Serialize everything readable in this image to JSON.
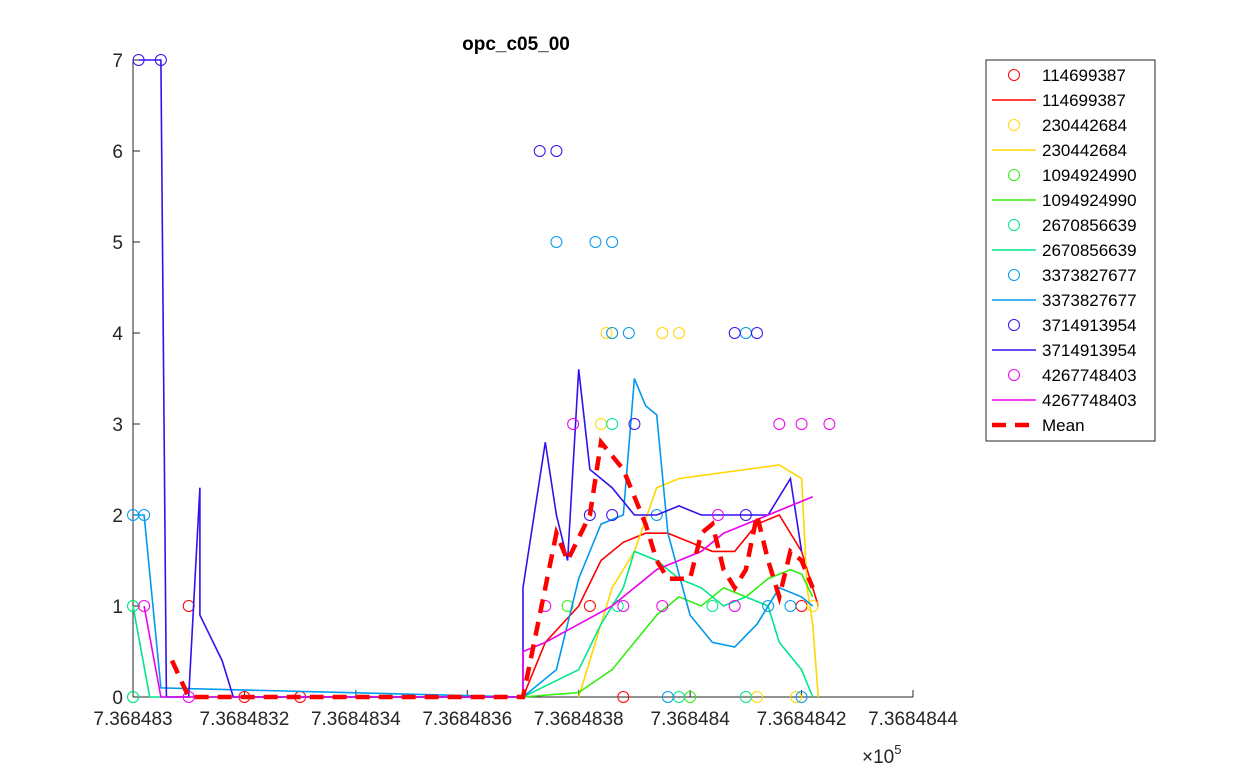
{
  "chart_data": {
    "type": "line",
    "title": "opc_c05_00",
    "xlabel": "",
    "ylabel": "",
    "x_exponent_label": "×10",
    "x_exponent_power": "5",
    "xlim": [
      7.368483,
      7.3684844
    ],
    "ylim": [
      0,
      7
    ],
    "x_ticks": [
      7.368483,
      7.3684832,
      7.3684834,
      7.3684836,
      7.3684838,
      7.368484,
      7.3684842,
      7.3684844
    ],
    "x_tick_labels": [
      "7.368483",
      "7.3684832",
      "7.3684834",
      "7.3684836",
      "7.3684838",
      "7.368484",
      "7.3684842",
      "7.3684844"
    ],
    "y_ticks": [
      0,
      1,
      2,
      3,
      4,
      5,
      6,
      7
    ],
    "y_tick_labels": [
      "0",
      "1",
      "2",
      "3",
      "4",
      "5",
      "6",
      "7"
    ],
    "grid": false,
    "legend_position": "outside-top-right",
    "series": [
      {
        "name": "114699387",
        "color": "#ff0000",
        "points": [
          [
            7.3684831,
            1
          ],
          [
            7.3684832,
            0
          ],
          [
            7.3684833,
            0
          ],
          [
            7.36848382,
            1
          ],
          [
            7.36848388,
            0
          ],
          [
            7.3684842,
            1
          ]
        ],
        "line": [
          [
            7.3684831,
            0
          ],
          [
            7.3684837,
            0
          ],
          [
            7.36848374,
            0.6
          ],
          [
            7.3684838,
            1.0
          ],
          [
            7.36848384,
            1.5
          ],
          [
            7.36848388,
            1.7
          ],
          [
            7.36848392,
            1.8
          ],
          [
            7.36848396,
            1.8
          ],
          [
            7.368484,
            1.7
          ],
          [
            7.36848404,
            1.6
          ],
          [
            7.36848408,
            1.6
          ],
          [
            7.36848412,
            1.9
          ],
          [
            7.36848416,
            2.0
          ],
          [
            7.3684842,
            1.6
          ],
          [
            7.36848423,
            1.0
          ]
        ]
      },
      {
        "name": "230442684",
        "color": "#ffd700",
        "points": [
          [
            7.36848384,
            3
          ],
          [
            7.36848385,
            4
          ],
          [
            7.36848386,
            4
          ],
          [
            7.36848395,
            4
          ],
          [
            7.36848398,
            4
          ],
          [
            7.36848412,
            0
          ],
          [
            7.36848419,
            0
          ],
          [
            7.36848422,
            1
          ]
        ],
        "line": [
          [
            7.3684838,
            0
          ],
          [
            7.36848383,
            0.6
          ],
          [
            7.36848386,
            1.2
          ],
          [
            7.3684839,
            1.6
          ],
          [
            7.36848394,
            2.3
          ],
          [
            7.36848398,
            2.4
          ],
          [
            7.36848404,
            2.45
          ],
          [
            7.3684841,
            2.5
          ],
          [
            7.36848416,
            2.55
          ],
          [
            7.3684842,
            2.4
          ],
          [
            7.36848421,
            1.2
          ],
          [
            7.36848422,
            0.8
          ],
          [
            7.36848423,
            0
          ]
        ]
      },
      {
        "name": "1094924990",
        "color": "#33ee11",
        "points": [
          [
            7.368483,
            1
          ],
          [
            7.368483,
            0
          ],
          [
            7.36848378,
            1
          ],
          [
            7.368484,
            0
          ]
        ],
        "line": [
          [
            7.3684837,
            0
          ],
          [
            7.3684838,
            0.05
          ],
          [
            7.36848386,
            0.3
          ],
          [
            7.3684839,
            0.6
          ],
          [
            7.36848394,
            0.9
          ],
          [
            7.36848398,
            1.1
          ],
          [
            7.36848402,
            1.0
          ],
          [
            7.36848406,
            1.2
          ],
          [
            7.3684841,
            1.1
          ],
          [
            7.36848414,
            1.3
          ],
          [
            7.36848418,
            1.4
          ],
          [
            7.3684842,
            1.35
          ],
          [
            7.36848422,
            1.1
          ]
        ]
      },
      {
        "name": "2670856639",
        "color": "#00e68a",
        "points": [
          [
            7.368483,
            1
          ],
          [
            7.368483,
            0
          ],
          [
            7.36848386,
            3
          ],
          [
            7.36848387,
            1
          ],
          [
            7.36848398,
            0
          ],
          [
            7.36848404,
            1
          ],
          [
            7.3684841,
            0
          ]
        ],
        "line": [
          [
            7.368483,
            1
          ],
          [
            7.36848303,
            0
          ],
          [
            7.3684837,
            0
          ],
          [
            7.3684838,
            0.3
          ],
          [
            7.36848384,
            0.8
          ],
          [
            7.36848388,
            1.2
          ],
          [
            7.3684839,
            1.6
          ],
          [
            7.36848394,
            1.5
          ],
          [
            7.36848398,
            1.3
          ],
          [
            7.36848402,
            1.2
          ],
          [
            7.36848406,
            1.0
          ],
          [
            7.3684841,
            1.1
          ],
          [
            7.36848414,
            1.0
          ],
          [
            7.36848416,
            0.6
          ],
          [
            7.3684842,
            0.3
          ],
          [
            7.36848422,
            0
          ]
        ]
      },
      {
        "name": "3373827677",
        "color": "#0099ee",
        "points": [
          [
            7.368483,
            2
          ],
          [
            7.36848302,
            2
          ],
          [
            7.36848376,
            5
          ],
          [
            7.36848383,
            5
          ],
          [
            7.36848386,
            5
          ],
          [
            7.36848386,
            4
          ],
          [
            7.36848389,
            4
          ],
          [
            7.36848394,
            2
          ],
          [
            7.36848396,
            0
          ],
          [
            7.3684841,
            4
          ],
          [
            7.36848414,
            1
          ],
          [
            7.36848418,
            1
          ],
          [
            7.3684842,
            0
          ]
        ],
        "line": [
          [
            7.368483,
            2
          ],
          [
            7.36848302,
            2
          ],
          [
            7.36848305,
            0.1
          ],
          [
            7.3684837,
            0
          ],
          [
            7.36848376,
            0.3
          ],
          [
            7.3684838,
            1.3
          ],
          [
            7.36848384,
            1.9
          ],
          [
            7.36848388,
            2.0
          ],
          [
            7.3684839,
            3.5
          ],
          [
            7.36848392,
            3.2
          ],
          [
            7.36848394,
            3.1
          ],
          [
            7.36848396,
            1.8
          ],
          [
            7.368484,
            0.9
          ],
          [
            7.36848404,
            0.6
          ],
          [
            7.36848408,
            0.55
          ],
          [
            7.36848412,
            0.8
          ],
          [
            7.36848416,
            1.2
          ],
          [
            7.3684842,
            1.1
          ],
          [
            7.36848422,
            1.0
          ]
        ]
      },
      {
        "name": "3714913954",
        "color": "#3311ee",
        "points": [
          [
            7.36848301,
            7
          ],
          [
            7.36848305,
            7
          ],
          [
            7.36848373,
            6
          ],
          [
            7.36848376,
            6
          ],
          [
            7.36848382,
            2
          ],
          [
            7.36848386,
            2
          ],
          [
            7.3684839,
            3
          ],
          [
            7.36848408,
            4
          ],
          [
            7.3684841,
            2
          ],
          [
            7.36848412,
            4
          ]
        ],
        "line": [
          [
            7.36848301,
            7
          ],
          [
            7.36848305,
            7
          ],
          [
            7.36848306,
            0
          ],
          [
            7.3684831,
            0
          ],
          [
            7.36848312,
            2.3
          ],
          [
            7.36848312,
            0.9
          ],
          [
            7.36848316,
            0.4
          ],
          [
            7.36848318,
            0
          ],
          [
            7.3684837,
            0
          ],
          [
            7.3684837,
            1.2
          ],
          [
            7.36848374,
            2.8
          ],
          [
            7.36848376,
            2.0
          ],
          [
            7.36848378,
            1.5
          ],
          [
            7.3684838,
            3.6
          ],
          [
            7.36848382,
            2.5
          ],
          [
            7.36848386,
            2.3
          ],
          [
            7.3684839,
            2.0
          ],
          [
            7.36848394,
            2.0
          ],
          [
            7.36848398,
            2.1
          ],
          [
            7.36848402,
            2.0
          ],
          [
            7.36848406,
            2.0
          ],
          [
            7.3684841,
            2.0
          ],
          [
            7.36848414,
            2.0
          ],
          [
            7.36848418,
            2.4
          ],
          [
            7.3684842,
            1.6
          ]
        ]
      },
      {
        "name": "4267748403",
        "color": "#ee00ee",
        "points": [
          [
            7.36848302,
            1
          ],
          [
            7.3684831,
            0
          ],
          [
            7.36848374,
            1
          ],
          [
            7.36848379,
            3
          ],
          [
            7.36848388,
            1
          ],
          [
            7.36848395,
            1
          ],
          [
            7.36848405,
            2
          ],
          [
            7.36848408,
            1
          ],
          [
            7.36848416,
            3
          ],
          [
            7.3684842,
            3
          ],
          [
            7.36848425,
            3
          ]
        ],
        "line": [
          [
            7.36848302,
            1
          ],
          [
            7.36848305,
            0
          ],
          [
            7.3684837,
            0
          ],
          [
            7.3684837,
            0.5
          ],
          [
            7.36848374,
            0.6
          ],
          [
            7.3684838,
            0.8
          ],
          [
            7.36848386,
            1.0
          ],
          [
            7.3684839,
            1.2
          ],
          [
            7.36848394,
            1.4
          ],
          [
            7.36848398,
            1.5
          ],
          [
            7.36848402,
            1.6
          ],
          [
            7.36848406,
            1.8
          ],
          [
            7.3684841,
            1.9
          ],
          [
            7.36848414,
            2.0
          ],
          [
            7.36848418,
            2.1
          ],
          [
            7.36848422,
            2.2
          ]
        ]
      }
    ],
    "mean": {
      "name": "Mean",
      "color": "#ff0000",
      "line": [
        [
          7.36848307,
          0.4
        ],
        [
          7.3684831,
          0
        ],
        [
          7.3684837,
          0
        ],
        [
          7.36848374,
          1.2
        ],
        [
          7.36848376,
          1.8
        ],
        [
          7.36848378,
          1.5
        ],
        [
          7.36848382,
          2.0
        ],
        [
          7.36848384,
          2.8
        ],
        [
          7.36848388,
          2.5
        ],
        [
          7.36848392,
          1.9
        ],
        [
          7.36848394,
          1.5
        ],
        [
          7.36848396,
          1.3
        ],
        [
          7.368484,
          1.3
        ],
        [
          7.36848402,
          1.8
        ],
        [
          7.36848404,
          1.9
        ],
        [
          7.36848406,
          1.4
        ],
        [
          7.36848408,
          1.2
        ],
        [
          7.3684841,
          1.4
        ],
        [
          7.36848412,
          2.0
        ],
        [
          7.36848414,
          1.5
        ],
        [
          7.36848416,
          1.1
        ],
        [
          7.36848418,
          1.6
        ],
        [
          7.3684842,
          1.5
        ],
        [
          7.36848422,
          1.2
        ]
      ]
    }
  }
}
